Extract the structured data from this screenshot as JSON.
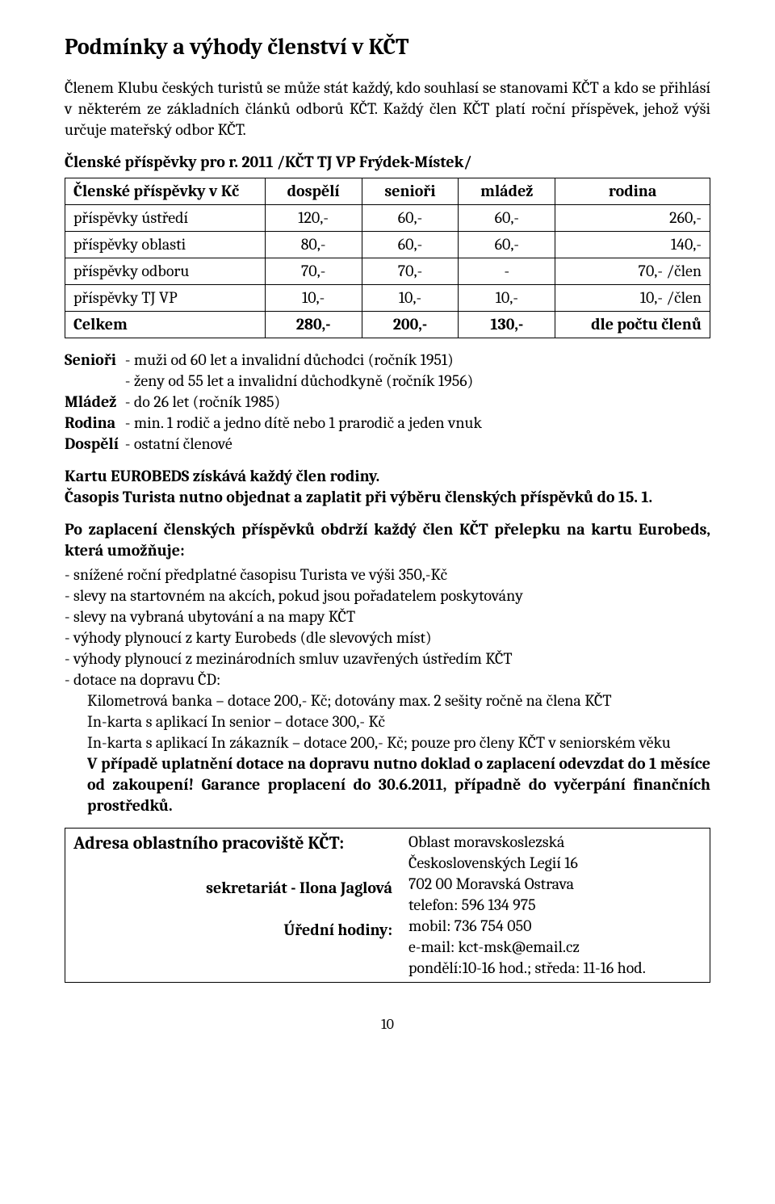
{
  "title": "Podmínky a výhody členství v KČT",
  "intro": "Členem Klubu českých turistů se může stát každý, kdo souhlasí se stanovami KČT a kdo se přihlásí v některém ze základních článků odborů KČT. Každý člen KČT platí roční příspěvek, jehož výši určuje mateřský odbor KČT.",
  "fees_header_prefix": "Členské příspěvky pro r. 2011",
  "fees_header_suffix": " /KČT TJ VP Frýdek-Místek/",
  "table": {
    "columns": [
      "Členské příspěvky v Kč",
      "dospělí",
      "senioři",
      "mládež",
      "rodina"
    ],
    "col_widths": [
      "31%",
      "15%",
      "15%",
      "15%",
      "24%"
    ],
    "rows": [
      [
        "příspěvky ústředí",
        "120,-",
        "60,-",
        "60,-",
        "260,-"
      ],
      [
        "příspěvky oblasti",
        "80,-",
        "60,-",
        "60,-",
        "140,-"
      ],
      [
        "příspěvky odboru",
        "70,-",
        "70,-",
        "-",
        "70,- /člen"
      ],
      [
        "příspěvky TJ VP",
        "10,-",
        "10,-",
        "10,-",
        "10,- /člen"
      ]
    ],
    "total": [
      "Celkem",
      "280,-",
      "200,-",
      "130,-",
      "dle počtu členů"
    ]
  },
  "defs": [
    {
      "label": "Senioři",
      "lines": [
        "- muži od 60 let a invalidní důchodci (ročník 1951)",
        "- ženy od 55 let a invalidní důchodkyně (ročník 1956)"
      ]
    },
    {
      "label": "Mládež",
      "lines": [
        "- do 26 let (ročník 1985)"
      ]
    },
    {
      "label": "Rodina",
      "lines": [
        "- min. 1 rodič a jedno dítě nebo 1 prarodič a jeden vnuk"
      ]
    },
    {
      "label": "Dospělí",
      "lines": [
        "- ostatní členové"
      ]
    }
  ],
  "card_line1": "Kartu EUROBEDS získává každý člen rodiny.",
  "card_line2": "Časopis Turista nutno objednat a zaplatit při výběru členských příspěvků do 15. 1.",
  "benefits_intro": "Po zaplacení členských příspěvků obdrží každý člen KČT přelepku na kartu Eurobeds, která umožňuje:",
  "benefits": [
    {
      "text": "- snížené roční předplatné časopisu Turista ve výši 350,-Kč",
      "indent": false,
      "bold": false
    },
    {
      "text": "- slevy na startovném na akcích, pokud jsou pořadatelem poskytovány",
      "indent": false,
      "bold": false
    },
    {
      "text": "- slevy na vybraná ubytování a na mapy KČT",
      "indent": false,
      "bold": false
    },
    {
      "text": "- výhody plynoucí z karty Eurobeds (dle slevových míst)",
      "indent": false,
      "bold": false
    },
    {
      "text": "- výhody plynoucí z mezinárodních smluv uzavřených ústředím KČT",
      "indent": false,
      "bold": false
    },
    {
      "text": "- dotace na dopravu ČD:",
      "indent": false,
      "bold": false
    },
    {
      "text": "Kilometrová banka – dotace 200,- Kč; dotovány max. 2 sešity ročně na člena KČT",
      "indent": true,
      "bold": false
    },
    {
      "text": "In-karta s aplikací In senior – dotace 300,- Kč",
      "indent": true,
      "bold": false
    },
    {
      "text": "In-karta s aplikací In zákazník – dotace 200,- Kč; pouze pro členy KČT v seniorském věku",
      "indent": true,
      "bold": false
    },
    {
      "text": "V případě uplatnění dotace na dopravu nutno doklad o zaplacení odevzdat do 1 měsíce od zakoupení! Garance proplacení do 30.6.2011, případně do vyčerpání finančních prostředků.",
      "indent": true,
      "bold": true
    }
  ],
  "address": {
    "heading": "Adresa oblastního pracoviště KČT:",
    "sub1": "sekretariát - Ilona Jaglová",
    "sub2": "Úřední hodiny:",
    "lines": [
      "Oblast moravskoslezská",
      "Československých Legií 16",
      "702 00 Moravská Ostrava",
      "telefon: 596 134 975",
      "mobil: 736 754 050",
      "e-mail: kct-msk@email.cz",
      "pondělí:10-16 hod.; středa: 11-16 hod."
    ]
  },
  "page_number": "10"
}
